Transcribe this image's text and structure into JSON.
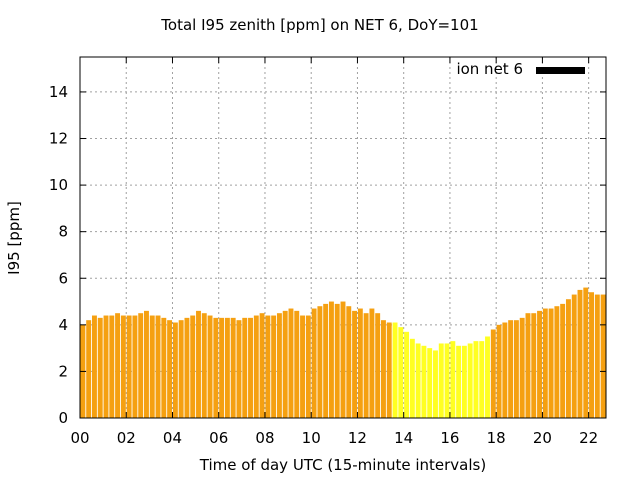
{
  "chart_data": {
    "type": "bar",
    "title": "Total I95 zenith [ppm] on NET 6, DoY=101",
    "xlabel": "Time of day UTC (15-minute intervals)",
    "ylabel": "I95 [ppm]",
    "ylim": [
      0,
      15.5
    ],
    "xlim": [
      0,
      22.75
    ],
    "y_ticks": [
      "0",
      "2",
      "4",
      "6",
      "8",
      "10",
      "12",
      "14"
    ],
    "x_ticks": [
      "00",
      "02",
      "04",
      "06",
      "08",
      "10",
      "12",
      "14",
      "16",
      "18",
      "20",
      "22"
    ],
    "grid": true,
    "legend_position": "top-right",
    "series": [
      {
        "name": "ion net 6",
        "interval_hours": 0.25,
        "values": [
          4.0,
          4.2,
          4.4,
          4.3,
          4.4,
          4.4,
          4.5,
          4.4,
          4.4,
          4.4,
          4.5,
          4.6,
          4.4,
          4.4,
          4.3,
          4.2,
          4.1,
          4.2,
          4.3,
          4.4,
          4.6,
          4.5,
          4.4,
          4.3,
          4.3,
          4.3,
          4.3,
          4.2,
          4.3,
          4.3,
          4.4,
          4.5,
          4.4,
          4.4,
          4.5,
          4.6,
          4.7,
          4.6,
          4.4,
          4.4,
          4.7,
          4.8,
          4.9,
          5.0,
          4.9,
          5.0,
          4.8,
          4.6,
          4.7,
          4.5,
          4.7,
          4.5,
          4.2,
          4.1,
          4.1,
          3.9,
          3.7,
          3.4,
          3.2,
          3.1,
          3.0,
          2.9,
          3.2,
          3.2,
          3.3,
          3.1,
          3.1,
          3.2,
          3.3,
          3.3,
          3.5,
          3.8,
          4.0,
          4.1,
          4.2,
          4.2,
          4.3,
          4.5,
          4.5,
          4.6,
          4.7,
          4.7,
          4.8,
          4.9,
          5.1,
          5.3,
          5.5,
          5.6,
          5.4,
          5.3,
          5.3,
          5.3,
          5.2
        ]
      }
    ],
    "colors": {
      "normal": "#f5a011",
      "highlight": "#ffff22",
      "grid": "#a0a0a0",
      "legend_swatch": "#000000"
    },
    "highlight_range_indices": [
      54,
      70
    ]
  }
}
